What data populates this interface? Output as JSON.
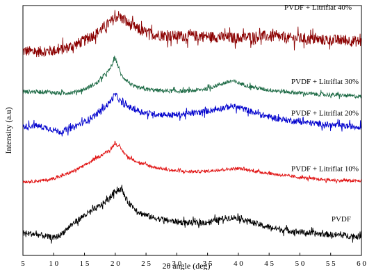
{
  "chart_data": {
    "type": "line",
    "xlabel": "2θ angle (deg)",
    "ylabel": "Intensity (a.u)",
    "xlim": [
      5,
      60
    ],
    "x_ticks": [
      5,
      10,
      15,
      20,
      25,
      30,
      35,
      40,
      45,
      50,
      55,
      60
    ],
    "x_tick_labels": [
      "5",
      "1 0",
      "1 5",
      "2 0",
      "2 5",
      "3 0",
      "3 5",
      "4 0",
      "4 5",
      "5 0",
      "5 5",
      "6 0"
    ],
    "ylim": [
      0,
      1
    ],
    "grid": false,
    "legend": "none",
    "series": [
      {
        "name": "PVDF + Litriflat 40%",
        "color": "#8b0000",
        "x": [
          5,
          7,
          9,
          11,
          13,
          15,
          17,
          19,
          20.5,
          22,
          24,
          26,
          28,
          30,
          32,
          34,
          36,
          38,
          40,
          42,
          44,
          46,
          48,
          50,
          52,
          54,
          56,
          58,
          60
        ],
        "values": [
          0.818,
          0.815,
          0.818,
          0.822,
          0.838,
          0.86,
          0.89,
          0.93,
          0.96,
          0.93,
          0.9,
          0.885,
          0.88,
          0.878,
          0.878,
          0.878,
          0.875,
          0.872,
          0.87,
          0.875,
          0.878,
          0.875,
          0.87,
          0.868,
          0.865,
          0.862,
          0.862,
          0.86,
          0.855
        ]
      },
      {
        "name": "PVDF + Litriflat 30%",
        "color": "#1e6b46",
        "x": [
          5,
          7,
          9,
          11,
          13,
          15,
          17,
          19,
          20,
          21,
          23,
          25,
          27,
          29,
          31,
          33,
          35,
          37,
          39,
          41,
          43,
          45,
          47,
          49,
          51,
          53,
          55,
          57,
          60
        ],
        "values": [
          0.655,
          0.655,
          0.655,
          0.648,
          0.652,
          0.665,
          0.69,
          0.74,
          0.79,
          0.72,
          0.675,
          0.665,
          0.66,
          0.658,
          0.657,
          0.66,
          0.668,
          0.685,
          0.698,
          0.683,
          0.67,
          0.662,
          0.657,
          0.652,
          0.648,
          0.645,
          0.643,
          0.64,
          0.636
        ]
      },
      {
        "name": "PVDF + Litriflat 20%",
        "color": "#0000cd",
        "x": [
          5,
          7,
          9,
          11,
          13,
          15,
          17,
          19,
          20,
          21,
          23,
          25,
          27,
          29,
          31,
          33,
          35,
          37,
          39,
          41,
          43,
          45,
          47,
          49,
          51,
          53,
          55,
          57,
          60
        ],
        "values": [
          0.515,
          0.52,
          0.51,
          0.495,
          0.51,
          0.535,
          0.565,
          0.61,
          0.645,
          0.61,
          0.585,
          0.57,
          0.565,
          0.562,
          0.565,
          0.57,
          0.578,
          0.588,
          0.598,
          0.585,
          0.568,
          0.555,
          0.545,
          0.538,
          0.532,
          0.527,
          0.522,
          0.518,
          0.515
        ]
      },
      {
        "name": "PVDF + Litriflat 10%",
        "color": "#e01010",
        "x": [
          5,
          7,
          9,
          11,
          13,
          15,
          17,
          19,
          20,
          20.8,
          22,
          24,
          26,
          28,
          30,
          32,
          34,
          36,
          38,
          40,
          42,
          44,
          46,
          48,
          50,
          52,
          54,
          56,
          60
        ],
        "values": [
          0.295,
          0.297,
          0.302,
          0.315,
          0.335,
          0.36,
          0.39,
          0.42,
          0.45,
          0.43,
          0.395,
          0.37,
          0.355,
          0.345,
          0.338,
          0.335,
          0.336,
          0.34,
          0.345,
          0.348,
          0.34,
          0.332,
          0.325,
          0.318,
          0.312,
          0.307,
          0.303,
          0.3,
          0.298
        ]
      },
      {
        "name": "PVDF",
        "color": "#000000",
        "x": [
          5,
          7,
          9,
          10,
          11,
          13,
          15,
          17,
          19,
          20,
          21,
          22,
          24,
          26,
          28,
          30,
          32,
          34,
          36,
          38,
          40,
          42,
          44,
          46,
          48,
          50,
          52,
          54,
          56,
          60
        ],
        "values": [
          0.09,
          0.085,
          0.075,
          0.07,
          0.08,
          0.125,
          0.16,
          0.19,
          0.225,
          0.26,
          0.265,
          0.215,
          0.17,
          0.152,
          0.142,
          0.135,
          0.13,
          0.13,
          0.138,
          0.15,
          0.152,
          0.135,
          0.118,
          0.108,
          0.1,
          0.094,
          0.088,
          0.085,
          0.082,
          0.075
        ]
      }
    ]
  }
}
